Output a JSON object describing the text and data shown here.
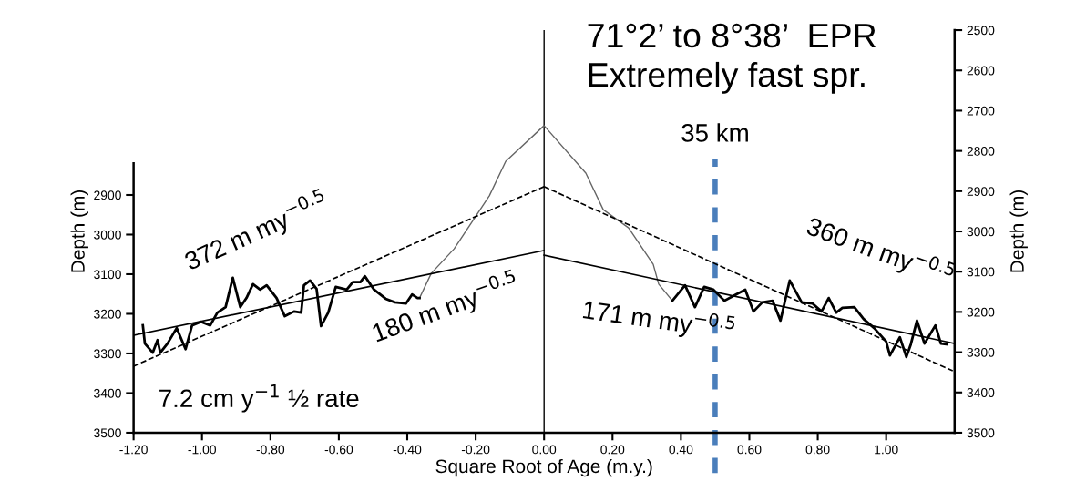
{
  "chart_data": {
    "type": "line",
    "title": "71°2’ to 8°38’  EPR\nExtremely fast spr.",
    "xlabel": "Square Root of Age (m.y.)",
    "ylabel": "Depth (m)",
    "y2label": "Depth (m)",
    "xlim": [
      -1.2,
      1.2
    ],
    "xticks": [
      {
        "value": -1.2,
        "label": "-1.20"
      },
      {
        "value": -1.0,
        "label": "-1.00"
      },
      {
        "value": -0.8,
        "label": "-0.80"
      },
      {
        "value": -0.6,
        "label": "-0.60"
      },
      {
        "value": -0.4,
        "label": "-0.40"
      },
      {
        "value": -0.2,
        "label": "-0.20"
      },
      {
        "value": 0,
        "label": "0.00"
      },
      {
        "value": 0.2,
        "label": "0.20"
      },
      {
        "value": 0.4,
        "label": "0.40"
      },
      {
        "value": 0.6,
        "label": "0.60"
      },
      {
        "value": 0.8,
        "label": "0.80"
      },
      {
        "value": 1.0,
        "label": "1.00"
      }
    ],
    "ylim": [
      3500,
      2484
    ],
    "yticks": [
      2900,
      3000,
      3100,
      3200,
      3300,
      3400,
      3500
    ],
    "y2lim": [
      3500,
      2500
    ],
    "y2ticks": [
      2500,
      2600,
      2700,
      2800,
      2900,
      3000,
      3100,
      3200,
      3300,
      3400,
      3500
    ],
    "grid": false,
    "marker": "none",
    "series": [
      {
        "color": "#666666",
        "line_style": "solid",
        "x": [
          -0.364,
          -0.33,
          -0.263,
          -0.16,
          -0.112,
          0.0,
          0.122,
          0.173,
          0.247,
          0.319,
          0.335,
          0.375
        ],
        "values": [
          3160,
          3098,
          3036,
          2902,
          2815,
          2725,
          2845,
          2937,
          2983,
          3075,
          3125,
          3167
        ]
      },
      {
        "color": "#000000",
        "line_style": "solid",
        "x": [
          -1.173,
          -1.167,
          -1.144,
          -1.13,
          -1.122,
          -1.101,
          -1.074,
          -1.048,
          -1.029,
          -1.003,
          -0.976,
          -0.955,
          -0.931,
          -0.91,
          -0.888,
          -0.87,
          -0.851,
          -0.83,
          -0.811,
          -0.782,
          -0.758,
          -0.731,
          -0.71,
          -0.702,
          -0.684,
          -0.665,
          -0.652,
          -0.631,
          -0.609,
          -0.577,
          -0.559,
          -0.537,
          -0.524,
          -0.497,
          -0.463,
          -0.436,
          -0.404,
          -0.386,
          -0.37,
          -0.364
        ],
        "values": [
          3229,
          3275,
          3298,
          3266,
          3298,
          3275,
          3236,
          3289,
          3229,
          3220,
          3229,
          3197,
          3183,
          3109,
          3183,
          3160,
          3125,
          3139,
          3128,
          3160,
          3206,
          3194,
          3197,
          3128,
          3116,
          3137,
          3231,
          3197,
          3132,
          3139,
          3120,
          3120,
          3105,
          3139,
          3162,
          3171,
          3174,
          3151,
          3160,
          3160
        ]
      },
      {
        "color": "#000000",
        "line_style": "solid",
        "x": [
          0.375,
          0.412,
          0.441,
          0.468,
          0.495,
          0.527,
          0.561,
          0.588,
          0.612,
          0.638,
          0.668,
          0.691,
          0.718,
          0.753,
          0.785,
          0.811,
          0.832,
          0.854,
          0.872,
          0.907,
          0.934,
          0.965,
          1.0,
          1.011,
          1.04,
          1.059,
          1.072,
          1.09,
          1.112,
          1.144,
          1.16,
          1.178
        ],
        "values": [
          3167,
          3128,
          3183,
          3132,
          3139,
          3167,
          3151,
          3139,
          3194,
          3171,
          3167,
          3217,
          3116,
          3171,
          3174,
          3194,
          3160,
          3197,
          3185,
          3183,
          3213,
          3236,
          3270,
          3305,
          3259,
          3309,
          3277,
          3217,
          3275,
          3229,
          3275,
          3277
        ]
      },
      {
        "color": "#000000",
        "line_style": "solid",
        "x": [
          -1.2,
          0.0
        ],
        "values": [
          3254,
          3040
        ]
      },
      {
        "color": "#000000",
        "line_style": "solid",
        "x": [
          0.0,
          1.2
        ],
        "values": [
          3052,
          3275
        ]
      },
      {
        "color": "#000000",
        "line_style": "dashed",
        "x": [
          -1.2,
          0.0
        ],
        "values": [
          3332,
          2879
        ]
      },
      {
        "color": "#000000",
        "line_style": "dashed",
        "x": [
          0.0,
          1.2
        ],
        "values": [
          2879,
          3346
        ]
      }
    ],
    "ref_lines": [
      {
        "axis": "x",
        "value": 0,
        "color": "#000000",
        "line_style": "solid"
      },
      {
        "axis": "x",
        "value": 0.5,
        "label": "35 km",
        "color": "#4a7ebb",
        "line_style": "dashed"
      }
    ],
    "annotations": [
      "372 m my$^{−0.5}$",
      "180 m my$^{−0.5}$",
      "171 m my$^{−0.5}$",
      "360 m my$^{−0.5}$",
      "7.2 cm y$^{−1}$ ½ rate"
    ]
  }
}
